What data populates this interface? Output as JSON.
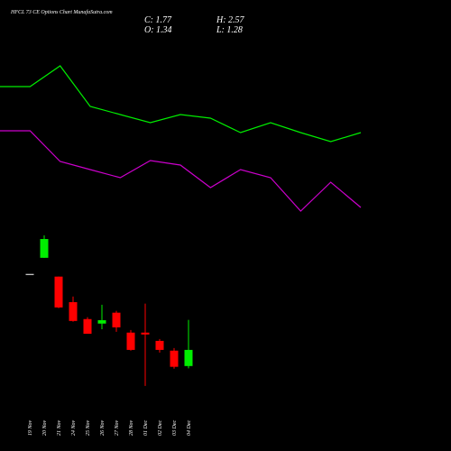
{
  "chart_data": [
    {
      "type": "line",
      "ylim": [
        0,
        100
      ],
      "x": [
        0,
        1,
        2,
        3,
        4,
        5,
        6,
        7,
        8,
        9,
        10,
        11,
        12
      ],
      "xlim": [
        0,
        12
      ],
      "series": [
        {
          "color": "#00ee00",
          "values": [
            77,
            77,
            88.5,
            66,
            61.5,
            57,
            61.5,
            59.5,
            51.5,
            57,
            51.5,
            46.5,
            51.5
          ]
        },
        {
          "color": "#cc00cc",
          "values": [
            52.5,
            52.5,
            35.5,
            31,
            26.5,
            36,
            33.5,
            21,
            31,
            26.5,
            8,
            24,
            10
          ]
        }
      ]
    },
    {
      "type": "candlestick",
      "title": "HFCL 73 CE Options Chart MunafaSutra.com",
      "header": [
        "C: 1.77",
        "H: 2.57",
        "O: 1.34",
        "L: 1.28"
      ],
      "ylim": [
        0.52,
        5.08
      ],
      "up_color": "#00ee00",
      "down_color": "#ff0000",
      "categories": [
        "19 Nov",
        "20 Nov",
        "21 Nov",
        "24 Nov",
        "25 Nov",
        "26 Nov",
        "27 Nov",
        "28 Nov",
        "01 Dec",
        "02 Dec",
        "03 Dec",
        "04 Dec"
      ],
      "open": [
        3.79,
        4.22,
        3.72,
        3.04,
        2.59,
        2.47,
        2.76,
        2.23,
        2.23,
        2.01,
        1.75,
        1.34
      ],
      "close": [
        3.79,
        4.72,
        2.9,
        2.54,
        2.2,
        2.56,
        2.37,
        1.77,
        2.18,
        1.77,
        1.32,
        1.77
      ],
      "high": [
        3.79,
        4.82,
        3.72,
        3.19,
        2.64,
        2.97,
        2.81,
        2.3,
        3.0,
        2.06,
        1.82,
        2.57
      ],
      "low": [
        3.79,
        4.22,
        2.88,
        2.52,
        2.2,
        2.32,
        2.25,
        1.75,
        0.81,
        1.7,
        1.27,
        1.28
      ]
    }
  ]
}
